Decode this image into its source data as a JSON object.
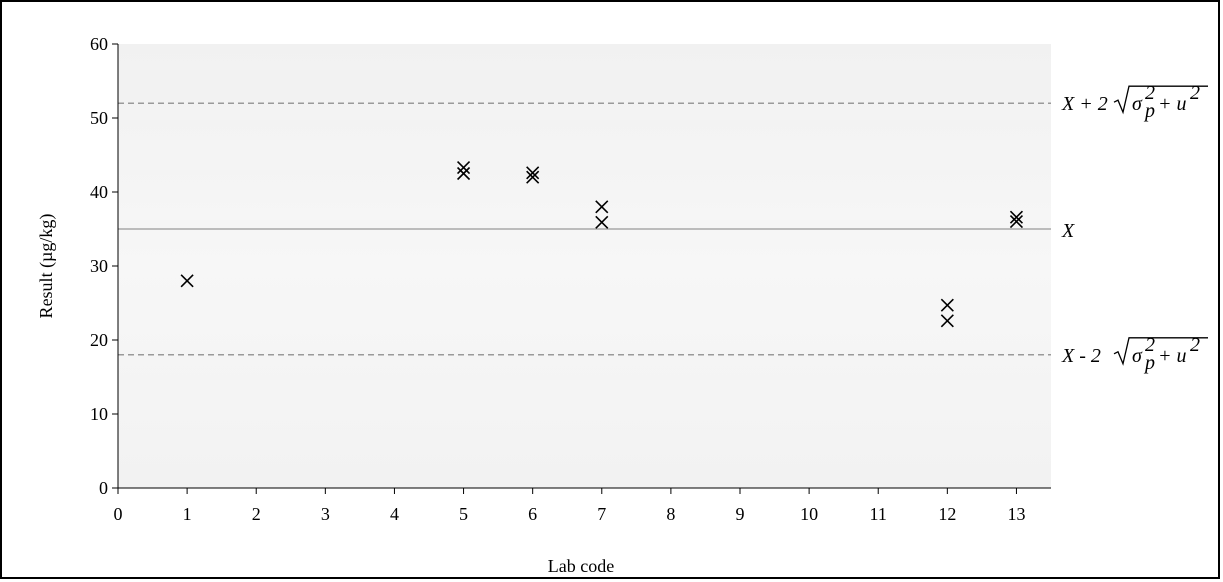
{
  "chart_data": {
    "type": "scatter",
    "xlabel": "Lab code",
    "ylabel": "Result (µg/kg)",
    "xlim": [
      0,
      13.5
    ],
    "ylim": [
      0,
      60
    ],
    "x_ticks": [
      "0",
      "1",
      "2",
      "3",
      "4",
      "5",
      "6",
      "7",
      "8",
      "9",
      "10",
      "11",
      "12",
      "13"
    ],
    "y_ticks": [
      "0",
      "10",
      "20",
      "30",
      "40",
      "50",
      "60"
    ],
    "marker": "x",
    "points": [
      {
        "x": 1,
        "y": 28.0
      },
      {
        "x": 5,
        "y": 43.3
      },
      {
        "x": 5,
        "y": 42.5
      },
      {
        "x": 6,
        "y": 42.6
      },
      {
        "x": 6,
        "y": 42.0
      },
      {
        "x": 7,
        "y": 38.0
      },
      {
        "x": 7,
        "y": 35.9
      },
      {
        "x": 12,
        "y": 24.7
      },
      {
        "x": 12,
        "y": 22.6
      },
      {
        "x": 13,
        "y": 36.6
      },
      {
        "x": 13,
        "y": 36.0
      }
    ],
    "reference_lines": [
      {
        "label": "X",
        "y": 35.0,
        "style": "solid"
      },
      {
        "label": "X + 2√(σp² + u²)",
        "y": 52.0,
        "style": "dashed"
      },
      {
        "label": "X - 2√(σp² + u²)",
        "y": 18.0,
        "style": "dashed"
      }
    ],
    "grid": false,
    "legend": "none"
  }
}
